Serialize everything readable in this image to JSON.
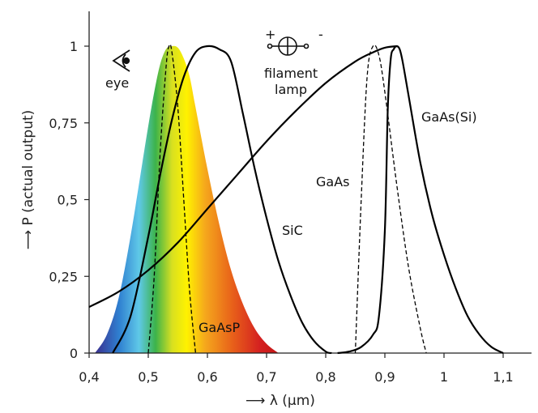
{
  "chart_data": {
    "type": "line",
    "ylabel": "⟶ P (actual output)",
    "xlabel": "⟶ λ (µm)",
    "xlim": [
      0.4,
      1.1
    ],
    "ylim": [
      0,
      1
    ],
    "xticks": [
      0.4,
      0.5,
      0.6,
      0.7,
      0.8,
      0.9,
      1.0,
      1.1
    ],
    "xtick_labels": [
      "0,4",
      "0,5",
      "0,6",
      "0,7",
      "0,8",
      "0,9",
      "1",
      "1,1"
    ],
    "yticks": [
      0,
      0.25,
      0.5,
      0.75,
      1
    ],
    "ytick_labels": [
      "0",
      "0,25",
      "0,5",
      "0,75",
      "1"
    ],
    "grid": false,
    "series": [
      {
        "name": "eye",
        "style": "spectrum-fill",
        "x": [
          0.41,
          0.43,
          0.45,
          0.47,
          0.49,
          0.5,
          0.51,
          0.52,
          0.53,
          0.54,
          0.55,
          0.56,
          0.57,
          0.58,
          0.6,
          0.62,
          0.64,
          0.66,
          0.68,
          0.7,
          0.72
        ],
        "y": [
          0,
          0.06,
          0.18,
          0.38,
          0.62,
          0.74,
          0.85,
          0.94,
          0.99,
          1.0,
          0.995,
          0.96,
          0.9,
          0.8,
          0.6,
          0.42,
          0.27,
          0.16,
          0.08,
          0.03,
          0
        ]
      },
      {
        "name": "GaAsP",
        "style": "dashed",
        "x": [
          0.5,
          0.51,
          0.52,
          0.53,
          0.535,
          0.54,
          0.55,
          0.56,
          0.57,
          0.58
        ],
        "y": [
          0,
          0.25,
          0.65,
          0.93,
          1.0,
          0.98,
          0.8,
          0.5,
          0.2,
          0
        ]
      },
      {
        "name": "SiC",
        "style": "solid",
        "x": [
          0.44,
          0.47,
          0.5,
          0.52,
          0.54,
          0.56,
          0.58,
          0.6,
          0.62,
          0.64,
          0.66,
          0.68,
          0.7,
          0.72,
          0.74,
          0.76,
          0.78,
          0.8,
          0.81
        ],
        "y": [
          0,
          0.12,
          0.38,
          0.58,
          0.76,
          0.9,
          0.98,
          1.0,
          0.99,
          0.95,
          0.78,
          0.6,
          0.44,
          0.3,
          0.19,
          0.1,
          0.04,
          0.005,
          0
        ]
      },
      {
        "name": "filament lamp",
        "style": "solid",
        "x": [
          0.4,
          0.45,
          0.5,
          0.55,
          0.6,
          0.65,
          0.7,
          0.75,
          0.8,
          0.85,
          0.88,
          0.9,
          0.92
        ],
        "y": [
          0.15,
          0.2,
          0.27,
          0.36,
          0.47,
          0.58,
          0.69,
          0.79,
          0.88,
          0.95,
          0.98,
          0.995,
          1.0
        ]
      },
      {
        "name": "GaAs",
        "style": "dashed",
        "x": [
          0.85,
          0.86,
          0.87,
          0.88,
          0.89,
          0.9,
          0.92,
          0.94,
          0.96,
          0.97
        ],
        "y": [
          0,
          0.5,
          0.9,
          1.0,
          0.97,
          0.85,
          0.55,
          0.28,
          0.08,
          0
        ]
      },
      {
        "name": "GaAs(Si)",
        "style": "solid",
        "x": [
          0.82,
          0.84,
          0.86,
          0.88,
          0.89,
          0.9,
          0.905,
          0.91,
          0.915,
          0.92,
          0.925,
          0.93,
          0.94,
          0.96,
          0.98,
          1.0,
          1.02,
          1.04,
          1.06,
          1.08,
          1.1
        ],
        "y": [
          0,
          0.005,
          0.02,
          0.06,
          0.12,
          0.4,
          0.8,
          0.96,
          0.99,
          1.0,
          0.99,
          0.95,
          0.84,
          0.62,
          0.45,
          0.32,
          0.21,
          0.12,
          0.06,
          0.02,
          0
        ]
      }
    ],
    "annotations": {
      "eye": "eye",
      "filament_lamp_line1": "filament",
      "filament_lamp_line2": "lamp",
      "gaasp": "GaAsP",
      "sic": "SiC",
      "gaas": "GaAs",
      "gaas_si": "GaAs(Si)",
      "plus": "+",
      "minus": "-"
    },
    "colors": {
      "spectrum": [
        "#3a2f8f",
        "#2f7fd0",
        "#5fc8e8",
        "#3cb34a",
        "#d8e020",
        "#fff200",
        "#f5a81c",
        "#e8601a",
        "#d42020",
        "#c41616"
      ]
    }
  }
}
